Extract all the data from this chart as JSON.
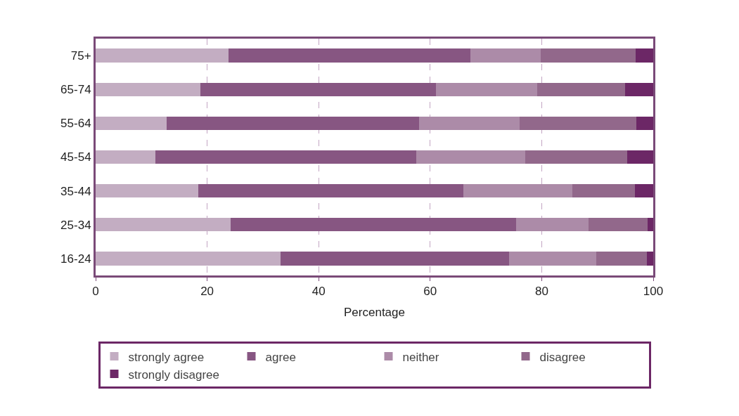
{
  "chart_data": {
    "type": "bar",
    "orientation": "horizontal",
    "stacked": true,
    "categories": [
      "75+",
      "65-74",
      "55-64",
      "45-54",
      "35-44",
      "25-34",
      "16-24"
    ],
    "series": [
      {
        "name": "strongly agree",
        "color": "#c3adc2",
        "values": [
          23.8,
          18.8,
          12.7,
          10.7,
          18.4,
          24.2,
          33.2
        ]
      },
      {
        "name": "agree",
        "color": "#875682",
        "values": [
          43.4,
          42.2,
          45.3,
          46.8,
          47.6,
          51.2,
          40.9
        ]
      },
      {
        "name": "neither",
        "color": "#ac8ba8",
        "values": [
          12.6,
          18.2,
          18.0,
          19.5,
          19.5,
          13.0,
          15.7
        ]
      },
      {
        "name": "disagree",
        "color": "#92688b",
        "values": [
          17.0,
          15.8,
          21.0,
          18.3,
          11.2,
          10.6,
          9.1
        ]
      },
      {
        "name": "strongly disagree",
        "color": "#6c2766",
        "values": [
          3.2,
          5.0,
          3.0,
          4.7,
          3.3,
          1.0,
          1.1
        ]
      }
    ],
    "xlim": [
      0,
      100
    ],
    "xticks": [
      0,
      20,
      40,
      60,
      80,
      100
    ],
    "xlabel": "Percentage",
    "grid": "x",
    "legend": "bottom"
  }
}
